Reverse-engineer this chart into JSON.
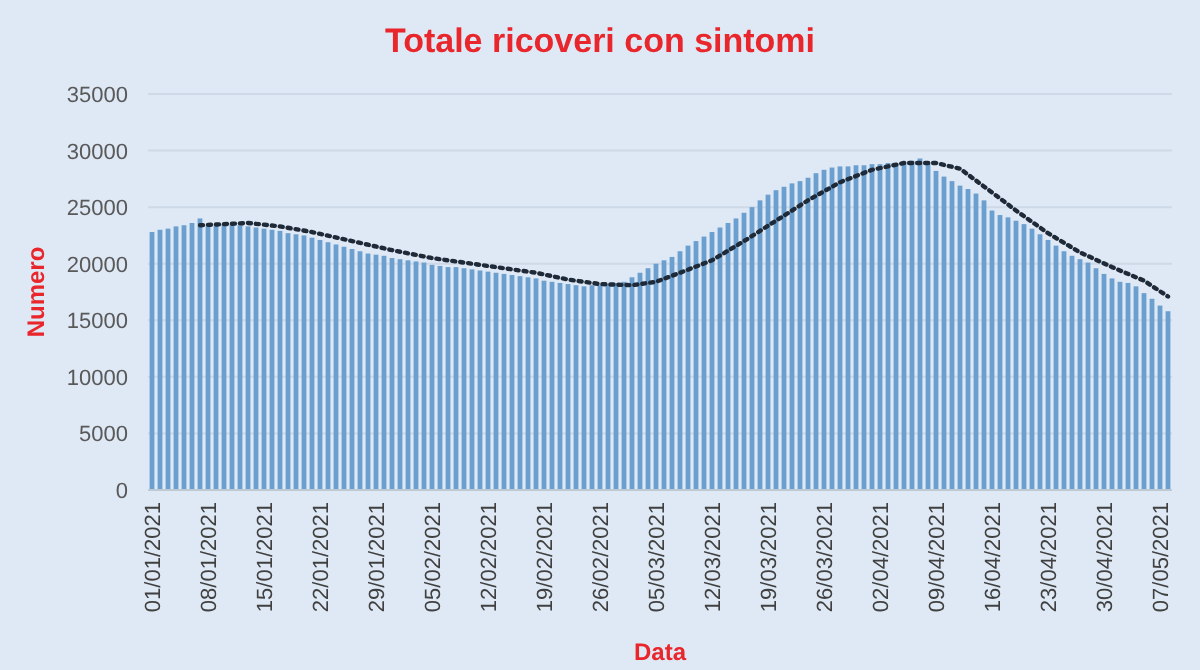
{
  "chart_data": {
    "type": "bar",
    "title": "Totale ricoveri con sintomi",
    "xlabel": "Data",
    "ylabel": "Numero",
    "x": [
      "2021-01-01",
      "2021-01-02",
      "2021-01-03",
      "2021-01-04",
      "2021-01-05",
      "2021-01-06",
      "2021-01-07",
      "2021-01-08",
      "2021-01-09",
      "2021-01-10",
      "2021-01-11",
      "2021-01-12",
      "2021-01-13",
      "2021-01-14",
      "2021-01-15",
      "2021-01-16",
      "2021-01-17",
      "2021-01-18",
      "2021-01-19",
      "2021-01-20",
      "2021-01-21",
      "2021-01-22",
      "2021-01-23",
      "2021-01-24",
      "2021-01-25",
      "2021-01-26",
      "2021-01-27",
      "2021-01-28",
      "2021-01-29",
      "2021-01-30",
      "2021-01-31",
      "2021-02-01",
      "2021-02-02",
      "2021-02-03",
      "2021-02-04",
      "2021-02-05",
      "2021-02-06",
      "2021-02-07",
      "2021-02-08",
      "2021-02-09",
      "2021-02-10",
      "2021-02-11",
      "2021-02-12",
      "2021-02-13",
      "2021-02-14",
      "2021-02-15",
      "2021-02-16",
      "2021-02-17",
      "2021-02-18",
      "2021-02-19",
      "2021-02-20",
      "2021-02-21",
      "2021-02-22",
      "2021-02-23",
      "2021-02-24",
      "2021-02-25",
      "2021-02-26",
      "2021-02-27",
      "2021-02-28",
      "2021-03-01",
      "2021-03-02",
      "2021-03-03",
      "2021-03-04",
      "2021-03-05",
      "2021-03-06",
      "2021-03-07",
      "2021-03-08",
      "2021-03-09",
      "2021-03-10",
      "2021-03-11",
      "2021-03-12",
      "2021-03-13",
      "2021-03-14",
      "2021-03-15",
      "2021-03-16",
      "2021-03-17",
      "2021-03-18",
      "2021-03-19",
      "2021-03-20",
      "2021-03-21",
      "2021-03-22",
      "2021-03-23",
      "2021-03-24",
      "2021-03-25",
      "2021-03-26",
      "2021-03-27",
      "2021-03-28",
      "2021-03-29",
      "2021-03-30",
      "2021-03-31",
      "2021-04-01",
      "2021-04-02",
      "2021-04-03",
      "2021-04-04",
      "2021-04-05",
      "2021-04-06",
      "2021-04-07",
      "2021-04-08",
      "2021-04-09",
      "2021-04-10",
      "2021-04-11",
      "2021-04-12",
      "2021-04-13",
      "2021-04-14",
      "2021-04-15",
      "2021-04-16",
      "2021-04-17",
      "2021-04-18",
      "2021-04-19",
      "2021-04-20",
      "2021-04-21",
      "2021-04-22",
      "2021-04-23",
      "2021-04-24",
      "2021-04-25",
      "2021-04-26",
      "2021-04-27",
      "2021-04-28",
      "2021-04-29",
      "2021-04-30",
      "2021-05-01",
      "2021-05-02",
      "2021-05-03",
      "2021-05-04",
      "2021-05-05",
      "2021-05-06",
      "2021-05-07",
      "2021-05-08"
    ],
    "series": [
      {
        "color": "#6a9fd0",
        "values": [
          22800,
          23000,
          23100,
          23300,
          23400,
          23600,
          24000,
          23300,
          23400,
          23500,
          23500,
          23400,
          23300,
          23200,
          23100,
          23000,
          22900,
          22700,
          22600,
          22500,
          22300,
          22100,
          21900,
          21700,
          21500,
          21300,
          21100,
          20900,
          20800,
          20700,
          20500,
          20400,
          20300,
          20200,
          20100,
          19900,
          19800,
          19700,
          19700,
          19600,
          19500,
          19400,
          19300,
          19200,
          19100,
          19000,
          18900,
          18800,
          18700,
          18500,
          18400,
          18300,
          18200,
          18100,
          18000,
          18100,
          18100,
          18200,
          18300,
          18400,
          18800,
          19200,
          19600,
          20000,
          20300,
          20600,
          21100,
          21600,
          22000,
          22400,
          22800,
          23200,
          23600,
          24000,
          24500,
          25000,
          25600,
          26100,
          26500,
          26800,
          27100,
          27300,
          27600,
          28000,
          28300,
          28500,
          28600,
          28600,
          28700,
          28700,
          28800,
          28800,
          28900,
          28900,
          29000,
          29100,
          29300,
          29000,
          28200,
          27700,
          27300,
          26900,
          26600,
          26200,
          25600,
          24700,
          24300,
          24100,
          23800,
          23500,
          23100,
          22600,
          22100,
          21600,
          21100,
          20700,
          20400,
          20100,
          19600,
          19100,
          18700,
          18400,
          18300,
          18000,
          17400,
          16900,
          16300,
          15800
        ]
      },
      {
        "type": "line",
        "color": "#1f2a38",
        "line_style": "dotted",
        "marker": "none",
        "x": [
          "2021-01-07",
          "2021-01-10",
          "2021-01-13",
          "2021-01-17",
          "2021-01-21",
          "2021-01-26",
          "2021-01-31",
          "2021-02-05",
          "2021-02-12",
          "2021-02-18",
          "2021-02-22",
          "2021-02-26",
          "2021-03-02",
          "2021-03-05",
          "2021-03-08",
          "2021-03-12",
          "2021-03-16",
          "2021-03-20",
          "2021-03-24",
          "2021-03-28",
          "2021-04-01",
          "2021-04-05",
          "2021-04-09",
          "2021-04-12",
          "2021-04-16",
          "2021-04-19",
          "2021-04-23",
          "2021-04-27",
          "2021-05-01",
          "2021-05-05",
          "2021-05-08"
        ],
        "values": [
          23400,
          23500,
          23600,
          23300,
          22800,
          22000,
          21200,
          20500,
          19800,
          19200,
          18600,
          18200,
          18100,
          18400,
          19200,
          20300,
          22000,
          23800,
          25600,
          27200,
          28300,
          28900,
          28900,
          28400,
          26300,
          24700,
          22700,
          21000,
          19700,
          18500,
          17100
        ]
      }
    ],
    "xlim": [
      "2020-12-31T12:00",
      "2021-05-08T12:00"
    ],
    "xticks": [
      {
        "value": "2021-01-01",
        "label": "01/01/2021"
      },
      {
        "value": "2021-01-08",
        "label": "08/01/2021"
      },
      {
        "value": "2021-01-15",
        "label": "15/01/2021"
      },
      {
        "value": "2021-01-22",
        "label": "22/01/2021"
      },
      {
        "value": "2021-01-29",
        "label": "29/01/2021"
      },
      {
        "value": "2021-02-05",
        "label": "05/02/2021"
      },
      {
        "value": "2021-02-12",
        "label": "12/02/2021"
      },
      {
        "value": "2021-02-19",
        "label": "19/02/2021"
      },
      {
        "value": "2021-02-26",
        "label": "26/02/2021"
      },
      {
        "value": "2021-03-05",
        "label": "05/03/2021"
      },
      {
        "value": "2021-03-12",
        "label": "12/03/2021"
      },
      {
        "value": "2021-03-19",
        "label": "19/03/2021"
      },
      {
        "value": "2021-03-26",
        "label": "26/03/2021"
      },
      {
        "value": "2021-04-02",
        "label": "02/04/2021"
      },
      {
        "value": "2021-04-09",
        "label": "09/04/2021"
      },
      {
        "value": "2021-04-16",
        "label": "16/04/2021"
      },
      {
        "value": "2021-04-23",
        "label": "23/04/2021"
      },
      {
        "value": "2021-04-30",
        "label": "30/04/2021"
      },
      {
        "value": "2021-05-07",
        "label": "07/05/2021"
      }
    ],
    "ylim": [
      0,
      35000
    ],
    "yticks": [
      0,
      5000,
      10000,
      15000,
      20000,
      25000,
      30000,
      35000
    ],
    "grid": "y"
  }
}
